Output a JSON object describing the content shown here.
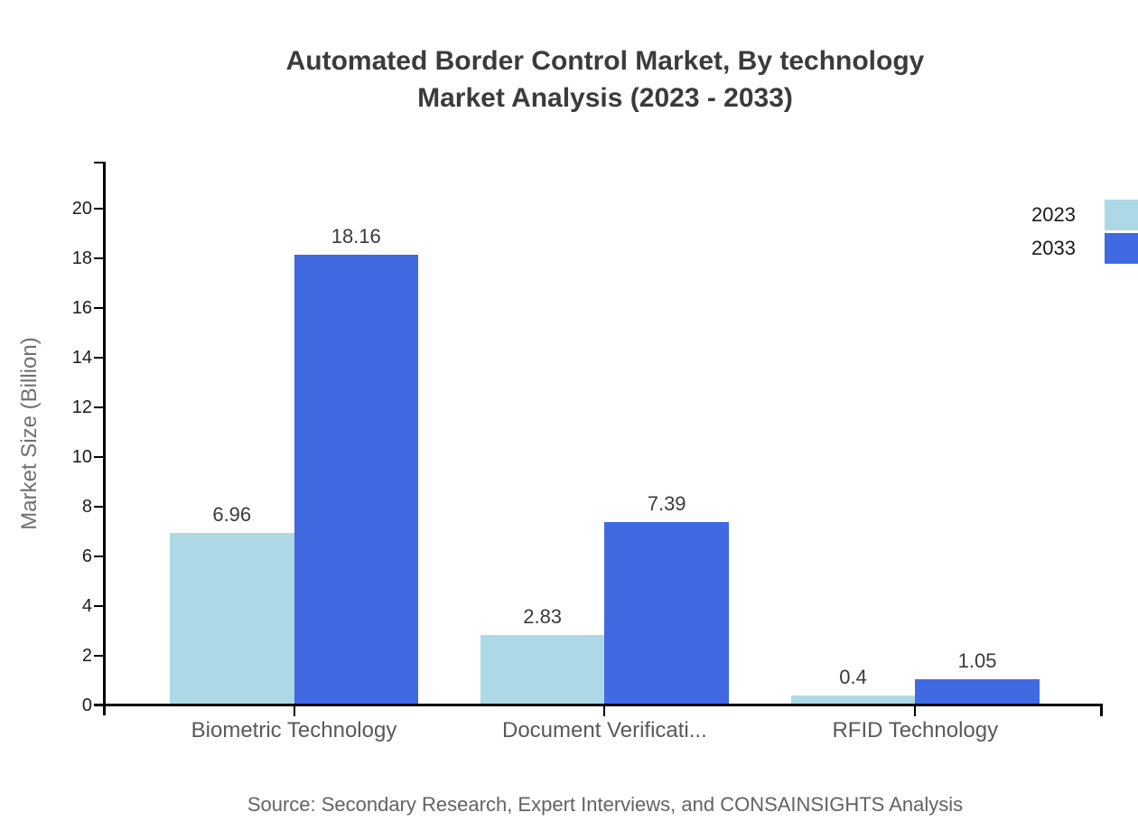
{
  "page": {
    "title_line1": "Automated Border Control Market, By technology",
    "title_line2": "Market Analysis (2023 - 2033)",
    "source": "Source: Secondary Research, Expert Interviews, and CONSAINSIGHTS Analysis"
  },
  "colors": {
    "series_2023": "#ADD8E6",
    "series_2033": "#4169E1",
    "axis": "#000000",
    "title_text": "#3b3b3b",
    "tick_text": "#1c1c1c",
    "category_text": "#595959",
    "axis_title_text": "#707070",
    "value_label_text": "#3a3a3a",
    "source_text": "#636363",
    "legend_text": "#1a1a1a",
    "background": "#ffffff"
  },
  "legend": {
    "items": [
      {
        "label": "2023",
        "color": "#ADD8E6"
      },
      {
        "label": "2033",
        "color": "#4169E1"
      }
    ]
  },
  "chart_data": {
    "type": "bar",
    "title": "Automated Border Control Market, By technology Market Analysis (2023 - 2033)",
    "categories": [
      "Biometric Technology",
      "Document Verificati...",
      "RFID Technology"
    ],
    "series": [
      {
        "name": "2023",
        "color": "#ADD8E6",
        "values": [
          6.96,
          2.83,
          0.4
        ],
        "labels": [
          "6.96",
          "2.83",
          "0.4"
        ]
      },
      {
        "name": "2033",
        "color": "#4169E1",
        "values": [
          18.16,
          7.39,
          1.05
        ],
        "labels": [
          "18.16",
          "7.39",
          "1.05"
        ]
      }
    ],
    "xlabel": "",
    "ylabel": "Market Size (Billion)",
    "ylim": [
      0,
      21.85
    ],
    "yticks": [
      0,
      2,
      4,
      6,
      8,
      10,
      12,
      14,
      16,
      18,
      20
    ],
    "grid": false,
    "legend_position": "top-right",
    "bar_value_labels_shown": true
  }
}
